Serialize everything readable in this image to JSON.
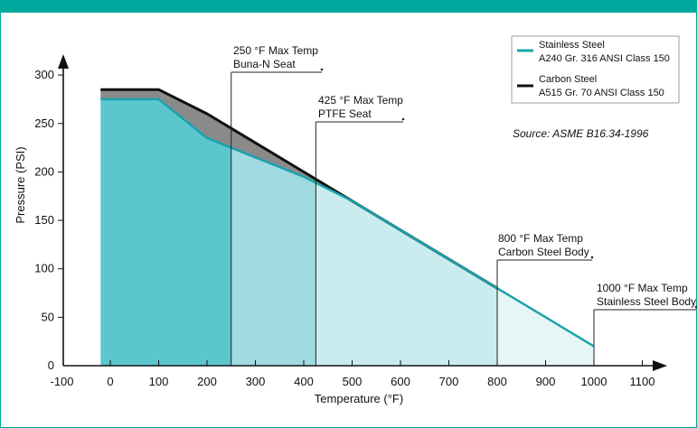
{
  "colors": {
    "frame": "#00a99d",
    "stainless_line": "#1aa3ad",
    "carbon_line": "#111111",
    "gray_fill": "#8a8a8a",
    "fill_dark": "#5cc6cd",
    "fill_mid": "#9fdbe0",
    "fill_light": "#c9ecef",
    "fill_lightest": "#e6f6f7"
  },
  "chart_data": {
    "type": "line",
    "xlabel": "Temperature (°F)",
    "ylabel": "Pressure (PSI)",
    "xlim": [
      -100,
      1100
    ],
    "ylim": [
      0,
      300
    ],
    "x_ticks": [
      "-100",
      "0",
      "100",
      "200",
      "300",
      "400",
      "500",
      "600",
      "700",
      "800",
      "900",
      "1000",
      "1100"
    ],
    "x_tick_values": [
      -100,
      0,
      100,
      200,
      300,
      400,
      500,
      600,
      700,
      800,
      900,
      1000,
      1100
    ],
    "y_ticks": [
      "0",
      "50",
      "100",
      "150",
      "200",
      "250",
      "300"
    ],
    "y_tick_values": [
      0,
      50,
      100,
      150,
      200,
      250,
      300
    ],
    "series": [
      {
        "name": "Stainless Steel A240 Gr. 316 ANSI Class 150",
        "legend_line1": "Stainless Steel",
        "legend_line2": "A240 Gr. 316 ANSI Class 150",
        "color": "#1aa3ad",
        "x": [
          -20,
          100,
          200,
          300,
          400,
          500,
          600,
          700,
          800,
          900,
          1000
        ],
        "y": [
          275,
          275,
          235,
          215,
          195,
          170,
          140,
          110,
          80,
          50,
          20
        ]
      },
      {
        "name": "Carbon Steel A515 Gr. 70 ANSI Class 150",
        "legend_line1": "Carbon Steel",
        "legend_line2": "A515 Gr. 70 ANSI Class 150",
        "color": "#111111",
        "x": [
          -20,
          100,
          200,
          300,
          400,
          500,
          600,
          700,
          800
        ],
        "y": [
          285,
          285,
          260,
          230,
          200,
          170,
          140,
          110,
          80
        ]
      }
    ],
    "markers": [
      {
        "x": 250,
        "line1": "250 °F Max Temp",
        "line2": "Buna-N Seat"
      },
      {
        "x": 425,
        "line1": "425 °F Max Temp",
        "line2": "PTFE Seat"
      },
      {
        "x": 800,
        "line1": "800 °F Max Temp",
        "line2": "Carbon Steel Body"
      },
      {
        "x": 1000,
        "line1": "1000 °F Max Temp",
        "line2": "Stainless Steel Body"
      }
    ],
    "source": "Source: ASME B16.34-1996",
    "legend_position": "top-right",
    "grid": false
  }
}
